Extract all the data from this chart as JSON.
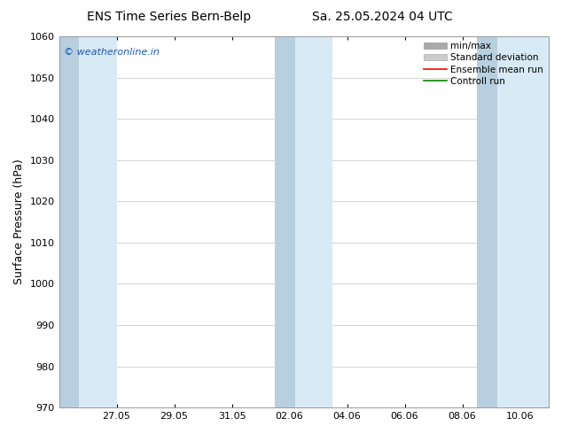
{
  "title_left": "ENS Time Series Bern-Belp",
  "title_right": "Sa. 25.05.2024 04 UTC",
  "ylabel": "Surface Pressure (hPa)",
  "ylim": [
    970,
    1060
  ],
  "yticks": [
    970,
    980,
    990,
    1000,
    1010,
    1020,
    1030,
    1040,
    1050,
    1060
  ],
  "xtick_labels": [
    "27.05",
    "29.05",
    "31.05",
    "02.06",
    "04.06",
    "06.06",
    "08.06",
    "10.06"
  ],
  "xtick_positions": [
    2,
    4,
    6,
    8,
    10,
    12,
    14,
    16
  ],
  "xlim": [
    0,
    17
  ],
  "watermark": "© weatheronline.in",
  "watermark_color": "#1a55bb",
  "bg_color": "#ffffff",
  "plot_bg_color": "#ffffff",
  "band_pairs": [
    {
      "dark": [
        0.0,
        0.7
      ],
      "light": [
        0.7,
        2.0
      ]
    },
    {
      "dark": [
        7.5,
        8.2
      ],
      "light": [
        8.2,
        9.5
      ]
    },
    {
      "dark": [
        14.5,
        15.2
      ],
      "light": [
        15.2,
        17.0
      ]
    }
  ],
  "minmax_color": "#b8cfe0",
  "std_color": "#d8eaf5",
  "legend_labels": [
    "min/max",
    "Standard deviation",
    "Ensemble mean run",
    "Controll run"
  ],
  "legend_minmax_color": "#aaaaaa",
  "legend_std_color": "#cccccc",
  "legend_mean_color": "#ff0000",
  "legend_ctrl_color": "#008800",
  "title_fontsize": 10,
  "tick_fontsize": 8,
  "label_fontsize": 9,
  "watermark_fontsize": 8,
  "legend_fontsize": 7.5,
  "grid_color": "#cccccc",
  "spine_color": "#999999"
}
